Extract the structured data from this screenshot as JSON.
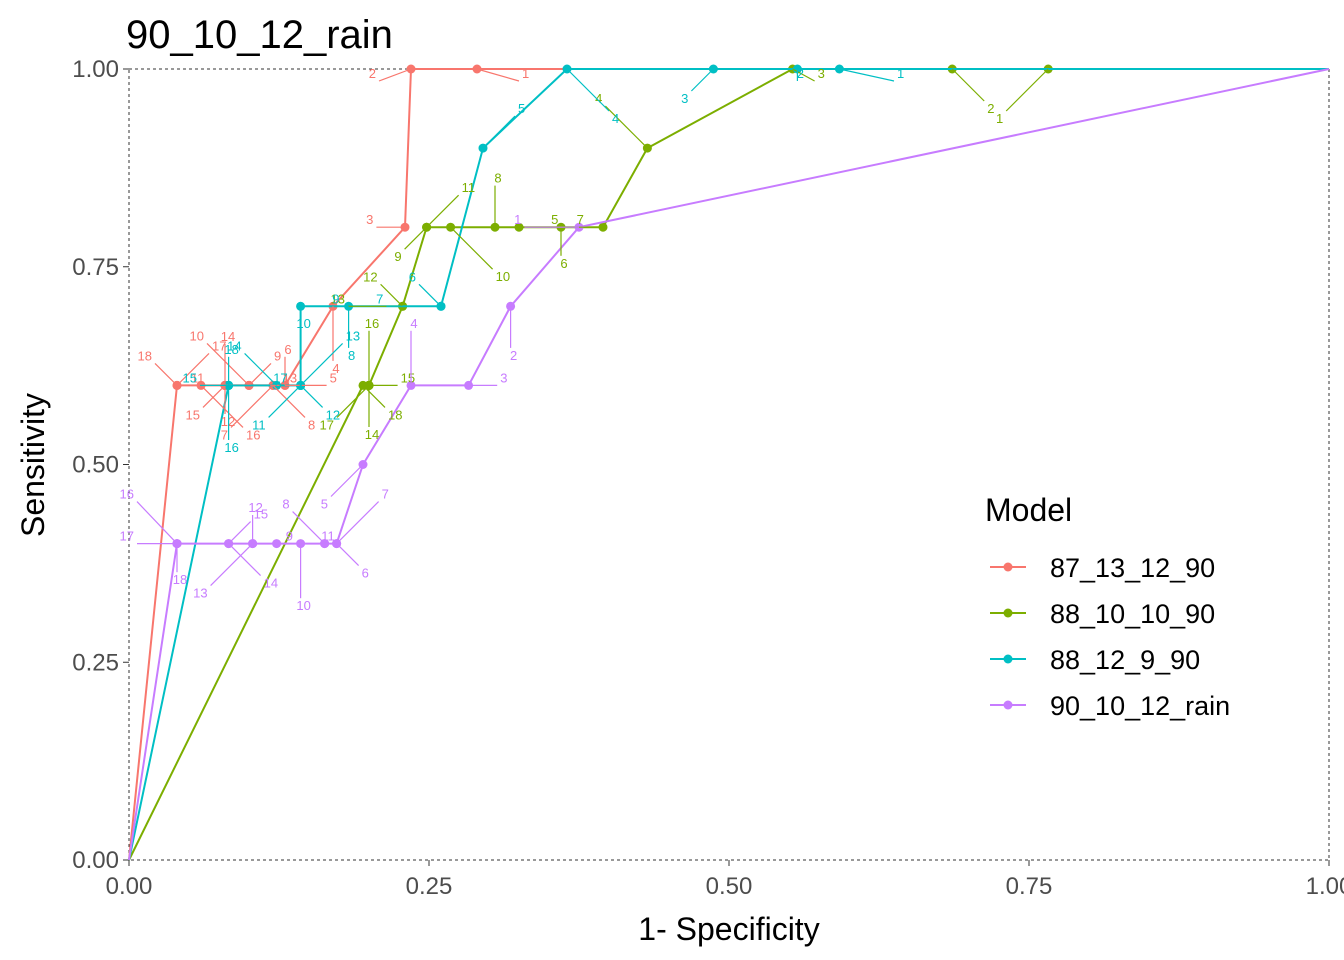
{
  "chart_data": {
    "type": "line",
    "title": "90_10_12_rain",
    "xlabel": "1- Specificity",
    "ylabel": "Sensitivity",
    "xlim": [
      0,
      1
    ],
    "ylim": [
      0,
      1
    ],
    "x_ticks": [
      "0.00",
      "0.25",
      "0.50",
      "0.75",
      "1.00"
    ],
    "y_ticks": [
      "0.00",
      "0.25",
      "0.50",
      "0.75",
      "1.00"
    ],
    "grid": false,
    "border": "dashed",
    "legend": {
      "title": "Model",
      "position": "right"
    },
    "series": [
      {
        "name": "87_13_12_90",
        "color": "#F8766D",
        "points": [
          {
            "x": 0,
            "y": 0
          },
          {
            "label": "18",
            "x": 0.04,
            "y": 0.6
          },
          {
            "label": "17",
            "x": 0.04,
            "y": 0.6
          },
          {
            "label": "16",
            "x": 0.06,
            "y": 0.6
          },
          {
            "label": "15",
            "x": 0.08,
            "y": 0.6
          },
          {
            "label": "14",
            "x": 0.08,
            "y": 0.6
          },
          {
            "label": "13",
            "x": 0.08,
            "y": 0.6
          },
          {
            "label": "12",
            "x": 0.08,
            "y": 0.6
          },
          {
            "label": "11",
            "x": 0.1,
            "y": 0.6
          },
          {
            "label": "10",
            "x": 0.1,
            "y": 0.6
          },
          {
            "label": "9",
            "x": 0.1,
            "y": 0.6
          },
          {
            "label": "8",
            "x": 0.12,
            "y": 0.6
          },
          {
            "label": "7",
            "x": 0.12,
            "y": 0.6
          },
          {
            "label": "6",
            "x": 0.13,
            "y": 0.6
          },
          {
            "label": "5",
            "x": 0.13,
            "y": 0.6
          },
          {
            "label": "4",
            "x": 0.17,
            "y": 0.7
          },
          {
            "label": "3",
            "x": 0.23,
            "y": 0.8
          },
          {
            "label": "2",
            "x": 0.235,
            "y": 1.0
          },
          {
            "label": "1",
            "x": 0.29,
            "y": 1.0
          },
          {
            "x": 1,
            "y": 1
          }
        ]
      },
      {
        "name": "88_10_10_90",
        "color": "#7CAE00",
        "points": [
          {
            "x": 0,
            "y": 0
          },
          {
            "label": "18",
            "x": 0.195,
            "y": 0.6
          },
          {
            "label": "17",
            "x": 0.2,
            "y": 0.6
          },
          {
            "label": "16",
            "x": 0.2,
            "y": 0.6
          },
          {
            "label": "15",
            "x": 0.2,
            "y": 0.6
          },
          {
            "label": "14",
            "x": 0.2,
            "y": 0.6
          },
          {
            "label": "13",
            "x": 0.228,
            "y": 0.7
          },
          {
            "label": "12",
            "x": 0.228,
            "y": 0.7
          },
          {
            "label": "11",
            "x": 0.248,
            "y": 0.8
          },
          {
            "label": "10",
            "x": 0.268,
            "y": 0.8
          },
          {
            "label": "9",
            "x": 0.248,
            "y": 0.8
          },
          {
            "label": "8",
            "x": 0.305,
            "y": 0.8
          },
          {
            "label": "7",
            "x": 0.325,
            "y": 0.8
          },
          {
            "label": "6",
            "x": 0.36,
            "y": 0.8
          },
          {
            "label": "5",
            "x": 0.395,
            "y": 0.8
          },
          {
            "label": "4",
            "x": 0.432,
            "y": 0.9
          },
          {
            "label": "3",
            "x": 0.553,
            "y": 1.0
          },
          {
            "label": "2",
            "x": 0.686,
            "y": 1.0
          },
          {
            "label": "1",
            "x": 0.766,
            "y": 1.0
          },
          {
            "x": 1,
            "y": 1
          }
        ]
      },
      {
        "name": "88_12_9_90",
        "color": "#00BFC4",
        "points": [
          {
            "x": 0,
            "y": 0
          },
          {
            "label": "18",
            "x": 0.083,
            "y": 0.6
          },
          {
            "label": "17",
            "x": 0.083,
            "y": 0.6
          },
          {
            "label": "16",
            "x": 0.083,
            "y": 0.6
          },
          {
            "label": "15",
            "x": 0.083,
            "y": 0.6
          },
          {
            "label": "14",
            "x": 0.123,
            "y": 0.6
          },
          {
            "label": "13",
            "x": 0.143,
            "y": 0.6
          },
          {
            "label": "12",
            "x": 0.143,
            "y": 0.6
          },
          {
            "label": "11",
            "x": 0.143,
            "y": 0.6
          },
          {
            "label": "10",
            "x": 0.143,
            "y": 0.6
          },
          {
            "label": "9",
            "x": 0.143,
            "y": 0.7
          },
          {
            "label": "8",
            "x": 0.183,
            "y": 0.7
          },
          {
            "label": "7",
            "x": 0.26,
            "y": 0.7
          },
          {
            "label": "6",
            "x": 0.26,
            "y": 0.7
          },
          {
            "label": "5",
            "x": 0.295,
            "y": 0.9
          },
          {
            "label": "4",
            "x": 0.365,
            "y": 1.0
          },
          {
            "label": "3",
            "x": 0.487,
            "y": 1.0
          },
          {
            "label": "2",
            "x": 0.557,
            "y": 1.0
          },
          {
            "label": "1",
            "x": 0.592,
            "y": 1.0
          },
          {
            "x": 1,
            "y": 1
          }
        ]
      },
      {
        "name": "90_10_12_rain",
        "color": "#C77CFF",
        "points": [
          {
            "x": 0,
            "y": 0
          },
          {
            "label": "18",
            "x": 0.04,
            "y": 0.4
          },
          {
            "label": "17",
            "x": 0.04,
            "y": 0.4
          },
          {
            "label": "16",
            "x": 0.04,
            "y": 0.4
          },
          {
            "label": "15",
            "x": 0.083,
            "y": 0.4
          },
          {
            "label": "14",
            "x": 0.083,
            "y": 0.4
          },
          {
            "label": "13",
            "x": 0.103,
            "y": 0.4
          },
          {
            "label": "12",
            "x": 0.103,
            "y": 0.4
          },
          {
            "label": "11",
            "x": 0.123,
            "y": 0.4
          },
          {
            "label": "10",
            "x": 0.143,
            "y": 0.4
          },
          {
            "label": "9",
            "x": 0.163,
            "y": 0.4
          },
          {
            "label": "8",
            "x": 0.163,
            "y": 0.4
          },
          {
            "label": "7",
            "x": 0.173,
            "y": 0.4
          },
          {
            "label": "6",
            "x": 0.173,
            "y": 0.4
          },
          {
            "label": "5",
            "x": 0.195,
            "y": 0.5
          },
          {
            "label": "4",
            "x": 0.235,
            "y": 0.6
          },
          {
            "label": "3",
            "x": 0.283,
            "y": 0.6
          },
          {
            "label": "2",
            "x": 0.318,
            "y": 0.7
          },
          {
            "label": "1",
            "x": 0.375,
            "y": 0.8
          },
          {
            "x": 1,
            "y": 1
          }
        ]
      }
    ]
  }
}
